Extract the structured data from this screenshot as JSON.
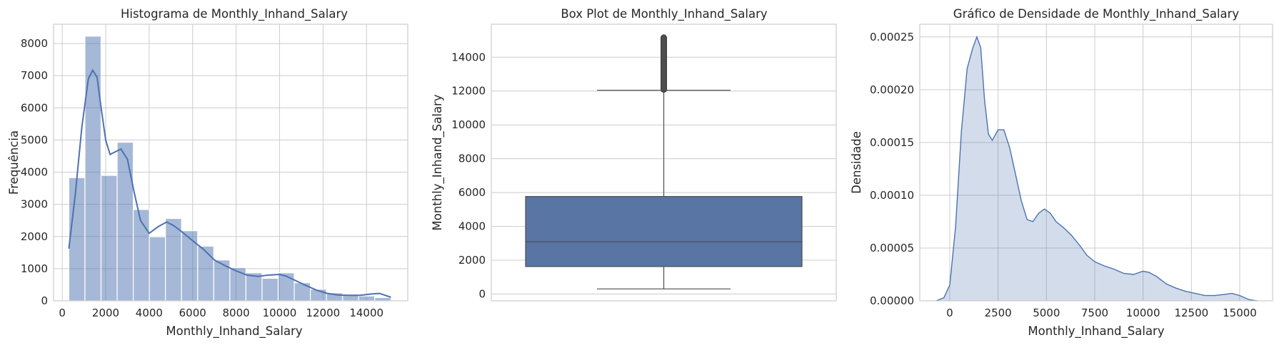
{
  "colors": {
    "accent": "#4c72b0",
    "bar_fill": "#4c72b0",
    "box_fill": "#5975a4",
    "grid": "#cccccc",
    "text": "#262626"
  },
  "chart_data": [
    {
      "type": "bar",
      "subtype": "histogram-with-kde",
      "title": "Histograma de Monthly_Inhand_Salary",
      "xlabel": "Monthly_Inhand_Salary",
      "ylabel": "Frequência",
      "bin_width": 741,
      "bins": [
        {
          "x0": 303,
          "x1": 1044,
          "count": 3830
        },
        {
          "x0": 1044,
          "x1": 1785,
          "count": 8230
        },
        {
          "x0": 1785,
          "x1": 2526,
          "count": 3900
        },
        {
          "x0": 2526,
          "x1": 3267,
          "count": 4930
        },
        {
          "x0": 3267,
          "x1": 4008,
          "count": 2840
        },
        {
          "x0": 4008,
          "x1": 4749,
          "count": 1990
        },
        {
          "x0": 4749,
          "x1": 5490,
          "count": 2560
        },
        {
          "x0": 5490,
          "x1": 6231,
          "count": 2180
        },
        {
          "x0": 6231,
          "x1": 6972,
          "count": 1700
        },
        {
          "x0": 6972,
          "x1": 7713,
          "count": 1270
        },
        {
          "x0": 7713,
          "x1": 8454,
          "count": 1030
        },
        {
          "x0": 8454,
          "x1": 9195,
          "count": 870
        },
        {
          "x0": 9195,
          "x1": 9936,
          "count": 700
        },
        {
          "x0": 9936,
          "x1": 10677,
          "count": 870
        },
        {
          "x0": 10677,
          "x1": 11418,
          "count": 560
        },
        {
          "x0": 11418,
          "x1": 12159,
          "count": 360
        },
        {
          "x0": 12159,
          "x1": 12900,
          "count": 250
        },
        {
          "x0": 12900,
          "x1": 13641,
          "count": 180
        },
        {
          "x0": 13641,
          "x1": 14382,
          "count": 150
        },
        {
          "x0": 14382,
          "x1": 15123,
          "count": 100
        }
      ],
      "kde": {
        "x": [
          303,
          600,
          900,
          1200,
          1400,
          1600,
          1800,
          2000,
          2200,
          2400,
          2700,
          3000,
          3300,
          3600,
          4000,
          4400,
          4800,
          5100,
          5500,
          6000,
          6500,
          7000,
          7500,
          8000,
          8500,
          9000,
          9500,
          10000,
          10300,
          10700,
          11200,
          11700,
          12200,
          12700,
          13200,
          13700,
          14200,
          14600,
          15123
        ],
        "y": [
          1620,
          3300,
          5400,
          6900,
          7170,
          6950,
          5950,
          5000,
          4550,
          4620,
          4720,
          4400,
          3400,
          2500,
          2100,
          2300,
          2450,
          2350,
          2150,
          1870,
          1600,
          1270,
          1090,
          930,
          800,
          760,
          800,
          820,
          770,
          640,
          480,
          330,
          230,
          180,
          170,
          170,
          210,
          230,
          110
        ]
      },
      "xlim": [
        -400,
        15900
      ],
      "ylim": [
        0,
        8600
      ],
      "xticks": [
        0,
        2000,
        4000,
        6000,
        8000,
        10000,
        12000,
        14000
      ],
      "yticks": [
        0,
        1000,
        2000,
        3000,
        4000,
        5000,
        6000,
        7000,
        8000
      ],
      "grid": true
    },
    {
      "type": "box",
      "title": "Box Plot de Monthly_Inhand_Salary",
      "xlabel": "",
      "ylabel": "Monthly_Inhand_Salary",
      "min": 303,
      "q1": 1626,
      "median": 3093,
      "q3": 5766,
      "whisker_high": 12050,
      "outliers_range": [
        12050,
        15200
      ],
      "ylim": [
        -400,
        15950
      ],
      "yticks": [
        0,
        2000,
        4000,
        6000,
        8000,
        10000,
        12000,
        14000
      ],
      "grid": true
    },
    {
      "type": "area",
      "subtype": "kde",
      "title": "Gráfico de Densidade de Monthly_Inhand_Salary",
      "xlabel": "Monthly_Inhand_Salary",
      "ylabel": "Densidade",
      "x": [
        -700,
        -300,
        0,
        300,
        600,
        900,
        1200,
        1400,
        1600,
        1800,
        2000,
        2200,
        2500,
        2800,
        3100,
        3400,
        3700,
        4000,
        4300,
        4600,
        4900,
        5200,
        5500,
        5900,
        6300,
        6700,
        7100,
        7500,
        8000,
        8500,
        9000,
        9500,
        10000,
        10300,
        10700,
        11200,
        11700,
        12200,
        12700,
        13200,
        13700,
        14200,
        14600,
        15000,
        15500,
        15900
      ],
      "y": [
        0.0,
        3e-06,
        1.5e-05,
        7e-05,
        0.00016,
        0.00022,
        0.00024,
        0.00025,
        0.00024,
        0.00019,
        0.000158,
        0.000152,
        0.000162,
        0.000162,
        0.000145,
        0.00012,
        9.5e-05,
        7.7e-05,
        7.5e-05,
        8.3e-05,
        8.7e-05,
        8.3e-05,
        7.5e-05,
        6.9e-05,
        6.2e-05,
        5.3e-05,
        4.3e-05,
        3.7e-05,
        3.3e-05,
        3e-05,
        2.6e-05,
        2.5e-05,
        2.8e-05,
        2.7e-05,
        2.3e-05,
        1.6e-05,
        1.2e-05,
        9e-06,
        7e-06,
        5e-06,
        5e-06,
        6e-06,
        7e-06,
        5e-06,
        1e-06,
        0.0
      ],
      "xlim": [
        -1550,
        16700
      ],
      "ylim": [
        0,
        0.000262
      ],
      "xticks": [
        "0",
        "2500",
        "5000",
        "7500",
        "10000",
        "12500",
        "15000"
      ],
      "yticks": [
        "0.00000",
        "0.00005",
        "0.00010",
        "0.00015",
        "0.00020",
        "0.00025"
      ],
      "grid": true
    }
  ]
}
